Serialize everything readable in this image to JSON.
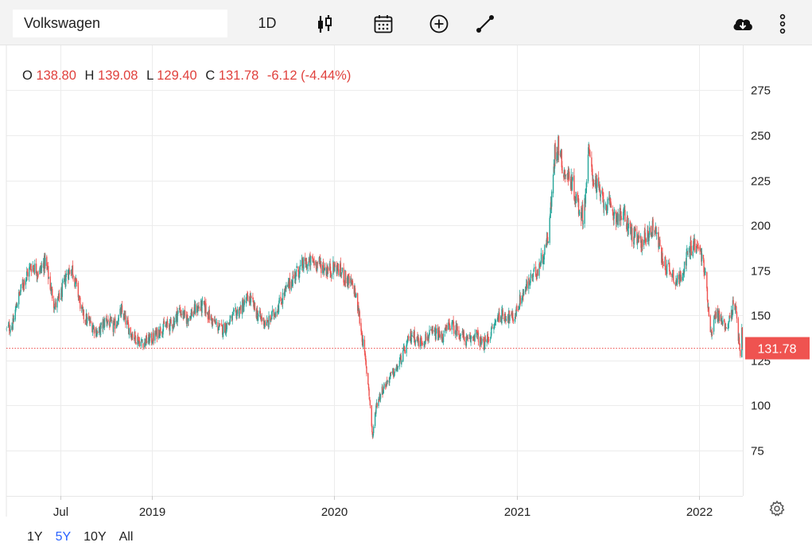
{
  "toolbar": {
    "symbol": "Volkswagen",
    "interval": "1D",
    "icons": {
      "chart_type": "candlestick-icon",
      "calendar": "calendar-icon",
      "compare": "plus-circle-icon",
      "draw": "line-tool-icon",
      "download": "cloud-download-icon",
      "menu": "more-vertical-icon"
    }
  },
  "ohlc": {
    "o_label": "O",
    "o": "138.80",
    "h_label": "H",
    "h": "139.08",
    "l_label": "L",
    "l": "129.40",
    "c_label": "C",
    "c": "131.78",
    "change": "-6.12 (-4.44%)"
  },
  "ranges": {
    "items": [
      "1Y",
      "5Y",
      "10Y",
      "All"
    ],
    "active": "5Y"
  },
  "colors": {
    "up": "#26a69a",
    "down": "#ef5350",
    "last": "#ef5350",
    "grid": "#ececec",
    "active_range": "#2962ff"
  },
  "chart_data": {
    "type": "candlestick",
    "title": "Volkswagen",
    "xlabel": "",
    "ylabel": "",
    "ylim": [
      50,
      300
    ],
    "yticks": [
      75,
      100,
      125,
      150,
      175,
      200,
      225,
      250,
      275
    ],
    "xlim": [
      "2018-03-15",
      "2022-03-30"
    ],
    "xticks": [
      {
        "date": "2018-07-01",
        "label": "Jul"
      },
      {
        "date": "2019-01-01",
        "label": "2019"
      },
      {
        "date": "2020-01-01",
        "label": "2020"
      },
      {
        "date": "2021-01-01",
        "label": "2021"
      },
      {
        "date": "2022-01-01",
        "label": "2022"
      }
    ],
    "last_price": 131.78,
    "last_price_label": "131.78",
    "close_path": [
      [
        "2018-03-15",
        142
      ],
      [
        "2018-03-28",
        145
      ],
      [
        "2018-04-05",
        157
      ],
      [
        "2018-04-20",
        170
      ],
      [
        "2018-05-05",
        178
      ],
      [
        "2018-05-20",
        174
      ],
      [
        "2018-06-01",
        180
      ],
      [
        "2018-06-10",
        168
      ],
      [
        "2018-06-20",
        155
      ],
      [
        "2018-07-01",
        160
      ],
      [
        "2018-07-15",
        174
      ],
      [
        "2018-07-25",
        176
      ],
      [
        "2018-08-05",
        163
      ],
      [
        "2018-08-15",
        150
      ],
      [
        "2018-09-01",
        145
      ],
      [
        "2018-09-15",
        140
      ],
      [
        "2018-10-01",
        148
      ],
      [
        "2018-10-15",
        143
      ],
      [
        "2018-11-01",
        152
      ],
      [
        "2018-11-20",
        140
      ],
      [
        "2018-12-10",
        135
      ],
      [
        "2019-01-01",
        137
      ],
      [
        "2019-01-20",
        143
      ],
      [
        "2019-02-10",
        145
      ],
      [
        "2019-02-25",
        153
      ],
      [
        "2019-03-10",
        148
      ],
      [
        "2019-04-01",
        154
      ],
      [
        "2019-04-15",
        155
      ],
      [
        "2019-05-01",
        147
      ],
      [
        "2019-05-20",
        142
      ],
      [
        "2019-06-01",
        145
      ],
      [
        "2019-06-15",
        150
      ],
      [
        "2019-07-01",
        155
      ],
      [
        "2019-07-15",
        160
      ],
      [
        "2019-08-01",
        150
      ],
      [
        "2019-08-20",
        145
      ],
      [
        "2019-09-10",
        155
      ],
      [
        "2019-09-25",
        163
      ],
      [
        "2019-10-15",
        173
      ],
      [
        "2019-11-01",
        178
      ],
      [
        "2019-11-20",
        180
      ],
      [
        "2019-12-05",
        178
      ],
      [
        "2019-12-20",
        175
      ],
      [
        "2020-01-05",
        177
      ],
      [
        "2020-01-20",
        172
      ],
      [
        "2020-02-10",
        165
      ],
      [
        "2020-02-20",
        150
      ],
      [
        "2020-03-01",
        130
      ],
      [
        "2020-03-10",
        110
      ],
      [
        "2020-03-18",
        82
      ],
      [
        "2020-03-25",
        100
      ],
      [
        "2020-04-05",
        108
      ],
      [
        "2020-04-20",
        115
      ],
      [
        "2020-05-05",
        120
      ],
      [
        "2020-05-20",
        130
      ],
      [
        "2020-06-05",
        140
      ],
      [
        "2020-06-20",
        135
      ],
      [
        "2020-07-05",
        138
      ],
      [
        "2020-07-20",
        140
      ],
      [
        "2020-08-05",
        138
      ],
      [
        "2020-08-20",
        145
      ],
      [
        "2020-09-10",
        140
      ],
      [
        "2020-09-25",
        135
      ],
      [
        "2020-10-10",
        140
      ],
      [
        "2020-10-25",
        133
      ],
      [
        "2020-11-10",
        140
      ],
      [
        "2020-11-25",
        150
      ],
      [
        "2020-12-10",
        150
      ],
      [
        "2020-12-25",
        148
      ],
      [
        "2021-01-10",
        160
      ],
      [
        "2021-01-25",
        168
      ],
      [
        "2021-02-10",
        175
      ],
      [
        "2021-02-25",
        185
      ],
      [
        "2021-03-05",
        195
      ],
      [
        "2021-03-12",
        215
      ],
      [
        "2021-03-18",
        240
      ],
      [
        "2021-03-25",
        245
      ],
      [
        "2021-04-05",
        230
      ],
      [
        "2021-04-20",
        225
      ],
      [
        "2021-05-05",
        210
      ],
      [
        "2021-05-15",
        205
      ],
      [
        "2021-05-25",
        240
      ],
      [
        "2021-06-05",
        225
      ],
      [
        "2021-06-20",
        215
      ],
      [
        "2021-07-05",
        210
      ],
      [
        "2021-07-20",
        205
      ],
      [
        "2021-08-05",
        205
      ],
      [
        "2021-08-20",
        195
      ],
      [
        "2021-09-05",
        190
      ],
      [
        "2021-09-20",
        195
      ],
      [
        "2021-10-05",
        200
      ],
      [
        "2021-10-20",
        180
      ],
      [
        "2021-11-05",
        175
      ],
      [
        "2021-11-20",
        168
      ],
      [
        "2021-12-05",
        180
      ],
      [
        "2021-12-20",
        190
      ],
      [
        "2022-01-05",
        185
      ],
      [
        "2022-01-15",
        170
      ],
      [
        "2022-01-25",
        140
      ],
      [
        "2022-02-05",
        152
      ],
      [
        "2022-02-20",
        145
      ],
      [
        "2022-03-01",
        145
      ],
      [
        "2022-03-10",
        155
      ],
      [
        "2022-03-18",
        150
      ],
      [
        "2022-03-25",
        125
      ],
      [
        "2022-03-28",
        140
      ],
      [
        "2022-03-30",
        131.78
      ]
    ]
  }
}
